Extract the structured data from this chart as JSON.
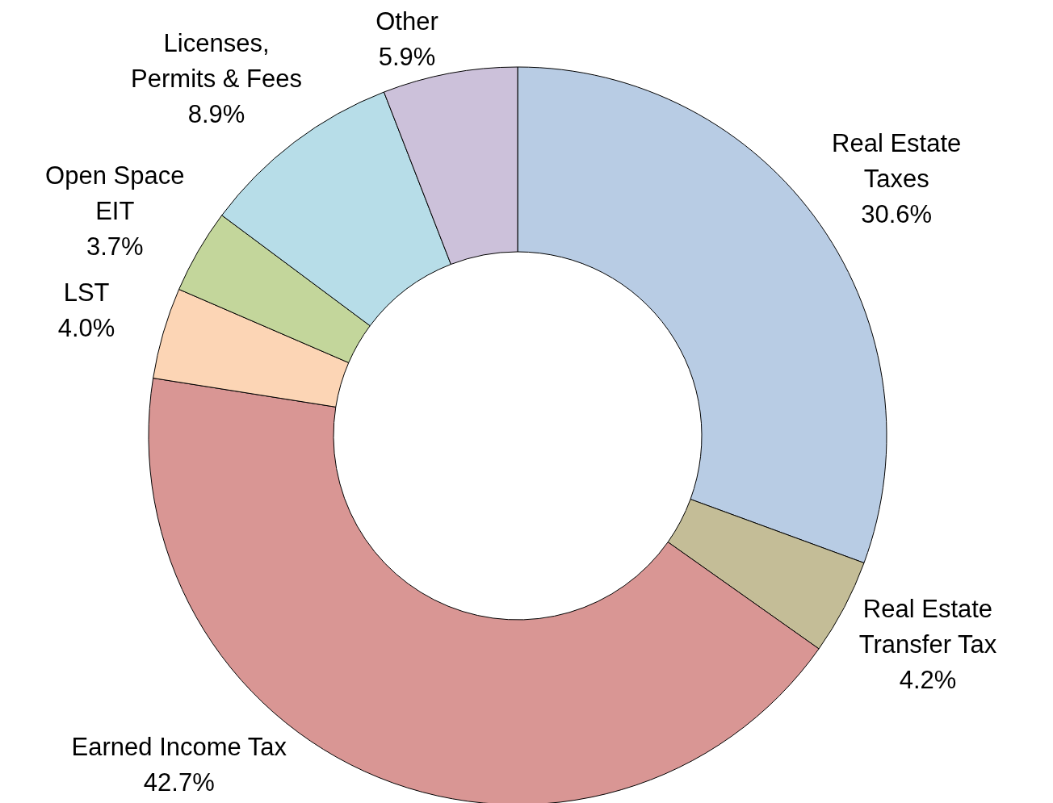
{
  "chart_data": {
    "type": "donut",
    "categories": [
      "Real Estate\nTaxes",
      "Real Estate\nTransfer Tax",
      "Earned Income Tax",
      "LST",
      "Open Space\nEIT",
      "Licenses,\nPermits & Fees",
      "Other"
    ],
    "values": [
      30.6,
      4.2,
      42.7,
      4.0,
      3.7,
      8.9,
      5.9
    ],
    "value_labels": [
      "30.6%",
      "4.2%",
      "42.7%",
      "4.0%",
      "3.7%",
      "8.9%",
      "5.9%"
    ],
    "colors": [
      "#b8cce4",
      "#c4bd97",
      "#d99694",
      "#fcd5b5",
      "#c3d69b",
      "#b7dde8",
      "#ccc1da"
    ],
    "legend": false
  }
}
